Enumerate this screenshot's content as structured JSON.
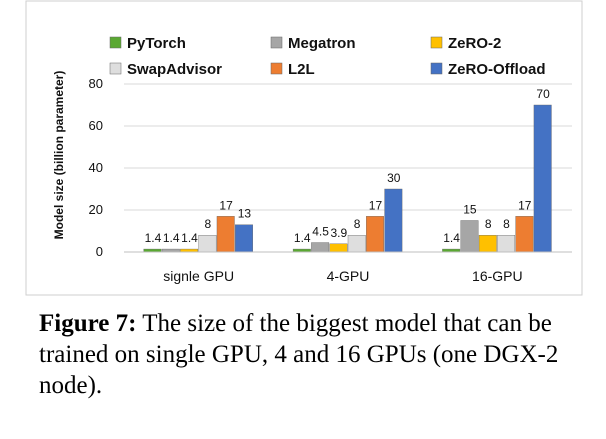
{
  "chart_data": {
    "type": "bar",
    "ylabel": "Model size (billion parameter)",
    "ylim": [
      0,
      80
    ],
    "yticks": [
      0,
      20,
      40,
      60,
      80
    ],
    "categories": [
      "signle GPU",
      "4-GPU",
      "16-GPU"
    ],
    "series": [
      {
        "name": "PyTorch",
        "color": "#5aa832",
        "values": [
          1.4,
          1.4,
          1.4
        ],
        "labels": [
          "1.4",
          "1.4",
          "1.4"
        ]
      },
      {
        "name": "Megatron",
        "color": "#a6a6a6",
        "values": [
          1.4,
          4.5,
          15
        ],
        "labels": [
          "1.4",
          "4.5",
          "15"
        ]
      },
      {
        "name": "ZeRO-2",
        "color": "#ffc000",
        "values": [
          1.4,
          3.9,
          8
        ],
        "labels": [
          "1.4",
          "3.9",
          "8"
        ]
      },
      {
        "name": "SwapAdvisor",
        "color": "#dedede",
        "values": [
          8,
          8,
          8
        ],
        "labels": [
          "8",
          "8",
          "8"
        ]
      },
      {
        "name": "L2L",
        "color": "#ed7d31",
        "values": [
          17,
          17,
          17
        ],
        "labels": [
          "17",
          "17",
          "17"
        ]
      },
      {
        "name": "ZeRO-Offload",
        "color": "#4472c4",
        "values": [
          13,
          30,
          70
        ],
        "labels": [
          "13",
          "30",
          "70"
        ]
      }
    ],
    "grid": true,
    "legend": "top"
  },
  "caption": {
    "label": "Figure 7:",
    "text": "The size of the biggest model that can be trained on single GPU, 4 and 16 GPUs (one DGX-2 node)."
  }
}
